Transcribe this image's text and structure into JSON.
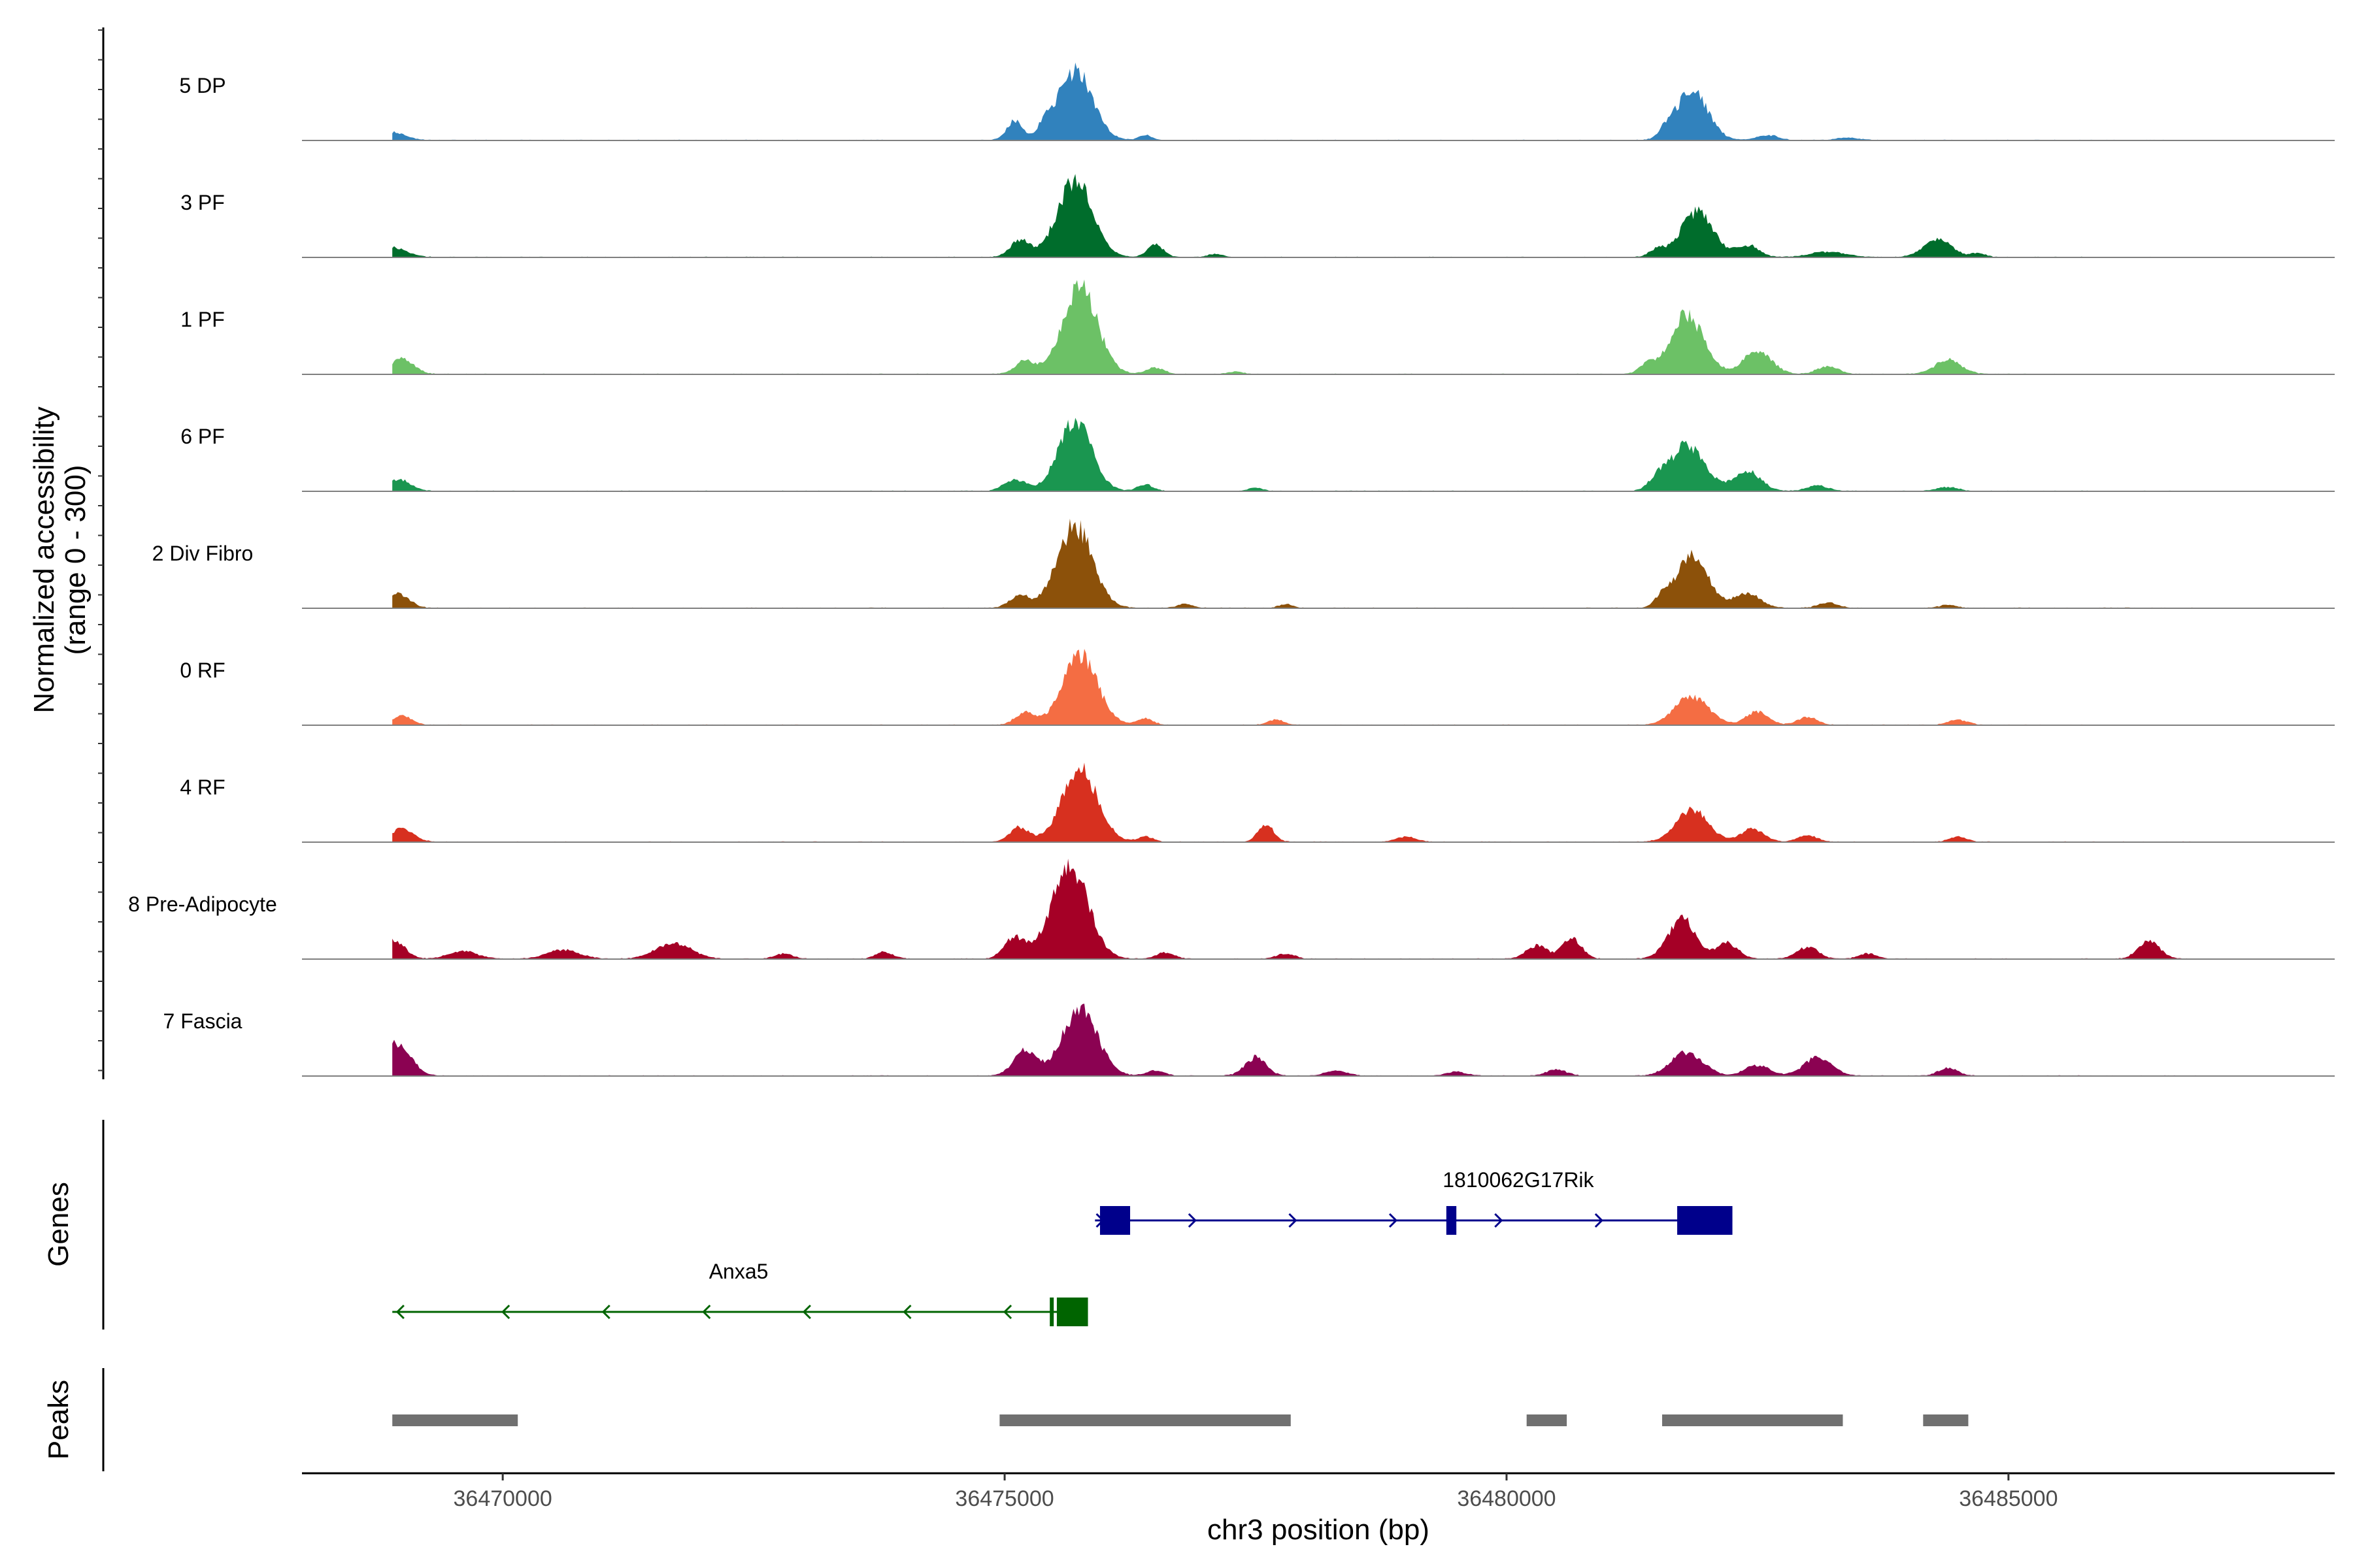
{
  "chart_data": {
    "type": "area",
    "chromosome": "chr3",
    "xlabel": "chr3 position (bp)",
    "ylabel_line1": "Normalized accessibility",
    "ylabel_line2": "(range 0 - 300)",
    "y_range": [
      0,
      300
    ],
    "xlim": [
      36468000,
      36488250
    ],
    "x_ticks": [
      36470000,
      36475000,
      36480000,
      36485000
    ],
    "x_tick_labels": [
      "36470000",
      "36475000",
      "36480000",
      "36485000"
    ],
    "genes_label": "Genes",
    "peaks_label": "Peaks",
    "tracks": [
      {
        "label": "5 DP",
        "color": "#3182bd",
        "amp": 1.0,
        "peaks": [
          [
            36468900,
            150,
            12
          ],
          [
            36475100,
            90,
            30
          ],
          [
            36475700,
            200,
            105
          ],
          [
            36475400,
            80,
            14
          ],
          [
            36476400,
            70,
            8
          ],
          [
            36481850,
            180,
            74
          ],
          [
            36481600,
            80,
            12
          ],
          [
            36482600,
            120,
            8
          ],
          [
            36483400,
            120,
            4
          ]
        ]
      },
      {
        "label": "3 PF",
        "color": "#006d2c",
        "amp": 1.0,
        "peaks": [
          [
            36468900,
            160,
            15
          ],
          [
            36475150,
            110,
            26
          ],
          [
            36475700,
            200,
            115
          ],
          [
            36476500,
            90,
            20
          ],
          [
            36477100,
            80,
            5
          ],
          [
            36481900,
            180,
            70
          ],
          [
            36481500,
            90,
            12
          ],
          [
            36482400,
            130,
            18
          ],
          [
            36483200,
            200,
            8
          ],
          [
            36484300,
            160,
            26
          ],
          [
            36484700,
            80,
            6
          ]
        ]
      },
      {
        "label": "1 PF",
        "color": "#6cc166",
        "amp": 1.0,
        "peaks": [
          [
            36469000,
            130,
            24
          ],
          [
            36475200,
            110,
            20
          ],
          [
            36475750,
            200,
            130
          ],
          [
            36476500,
            100,
            10
          ],
          [
            36477300,
            80,
            4
          ],
          [
            36481800,
            190,
            90
          ],
          [
            36481400,
            90,
            14
          ],
          [
            36482500,
            160,
            36
          ],
          [
            36483200,
            120,
            12
          ],
          [
            36484400,
            150,
            22
          ]
        ]
      },
      {
        "label": "6 PF",
        "color": "#1a9650",
        "amp": 1.0,
        "peaks": [
          [
            36468950,
            140,
            18
          ],
          [
            36475100,
            120,
            18
          ],
          [
            36475700,
            190,
            105
          ],
          [
            36476400,
            90,
            10
          ],
          [
            36477500,
            80,
            5
          ],
          [
            36481800,
            200,
            70
          ],
          [
            36481500,
            90,
            14
          ],
          [
            36482400,
            150,
            30
          ],
          [
            36483100,
            120,
            8
          ],
          [
            36484400,
            120,
            6
          ]
        ]
      },
      {
        "label": "2 Div Fibro",
        "color": "#8c510a",
        "amp": 1.0,
        "peaks": [
          [
            36468950,
            130,
            22
          ],
          [
            36475150,
            110,
            20
          ],
          [
            36475700,
            200,
            125
          ],
          [
            36476800,
            90,
            6
          ],
          [
            36477800,
            80,
            6
          ],
          [
            36481850,
            180,
            78
          ],
          [
            36481550,
            80,
            14
          ],
          [
            36482400,
            150,
            22
          ],
          [
            36483200,
            110,
            8
          ],
          [
            36484400,
            90,
            5
          ]
        ]
      },
      {
        "label": "0 RF",
        "color": "#f46d43",
        "amp": 1.0,
        "peaks": [
          [
            36469000,
            110,
            14
          ],
          [
            36475200,
            110,
            18
          ],
          [
            36475750,
            200,
            105
          ],
          [
            36476400,
            90,
            10
          ],
          [
            36477700,
            90,
            8
          ],
          [
            36481850,
            190,
            44
          ],
          [
            36482500,
            130,
            20
          ],
          [
            36483000,
            110,
            12
          ],
          [
            36484500,
            110,
            8
          ]
        ]
      },
      {
        "label": "4 RF",
        "color": "#d7301f",
        "amp": 1.0,
        "peaks": [
          [
            36469000,
            130,
            20
          ],
          [
            36475150,
            110,
            22
          ],
          [
            36475750,
            200,
            110
          ],
          [
            36476400,
            90,
            8
          ],
          [
            36477600,
            90,
            26
          ],
          [
            36479000,
            110,
            8
          ],
          [
            36481850,
            180,
            48
          ],
          [
            36482450,
            130,
            20
          ],
          [
            36483000,
            110,
            10
          ],
          [
            36484500,
            100,
            8
          ]
        ]
      },
      {
        "label": "8 Pre-Adipocyte",
        "color": "#a50026",
        "amp": 1.0,
        "peaks": [
          [
            36468900,
            130,
            30
          ],
          [
            36469600,
            160,
            12
          ],
          [
            36470600,
            180,
            14
          ],
          [
            36471700,
            200,
            24
          ],
          [
            36472800,
            100,
            8
          ],
          [
            36473800,
            100,
            10
          ],
          [
            36475100,
            120,
            32
          ],
          [
            36475650,
            210,
            140
          ],
          [
            36476600,
            100,
            10
          ],
          [
            36477800,
            100,
            8
          ],
          [
            36480300,
            120,
            20
          ],
          [
            36480650,
            110,
            30
          ],
          [
            36481750,
            160,
            60
          ],
          [
            36482200,
            120,
            24
          ],
          [
            36483000,
            120,
            18
          ],
          [
            36483600,
            100,
            8
          ],
          [
            36486400,
            120,
            28
          ]
        ]
      },
      {
        "label": "7 Fascia",
        "color": "#8b0252",
        "amp": 1.0,
        "peaks": [
          [
            36468950,
            150,
            50
          ],
          [
            36475200,
            130,
            38
          ],
          [
            36475750,
            200,
            100
          ],
          [
            36476500,
            100,
            8
          ],
          [
            36477500,
            120,
            28
          ],
          [
            36478300,
            120,
            8
          ],
          [
            36479500,
            110,
            6
          ],
          [
            36480500,
            110,
            10
          ],
          [
            36481800,
            180,
            36
          ],
          [
            36482500,
            140,
            16
          ],
          [
            36483100,
            160,
            28
          ],
          [
            36484400,
            110,
            12
          ]
        ]
      }
    ],
    "genes": [
      {
        "name": "1810062G17Rik",
        "strand": "+",
        "start": 36475900,
        "end": 36482250,
        "color": "#00008b",
        "exons": [
          [
            36475950,
            36476250
          ],
          [
            36479400,
            36479500
          ],
          [
            36481700,
            36482250
          ]
        ],
        "arrows": [
          36475980,
          36476900,
          36477900,
          36478900,
          36479950,
          36480950
        ]
      },
      {
        "name": "Anxa5",
        "strand": "-",
        "start": 36468900,
        "end": 36475800,
        "color": "#006400",
        "exons": [
          [
            36475450,
            36475480
          ],
          [
            36475520,
            36475830
          ]
        ],
        "arrows": [
          36468950,
          36470000,
          36471000,
          36472000,
          36473000,
          36474000,
          36475000
        ]
      }
    ],
    "peak_regions": [
      [
        36468900,
        36470150
      ],
      [
        36474950,
        36477850
      ],
      [
        36480200,
        36480600
      ],
      [
        36481550,
        36483350
      ],
      [
        36484150,
        36484600
      ]
    ],
    "peak_color": "#707070"
  }
}
